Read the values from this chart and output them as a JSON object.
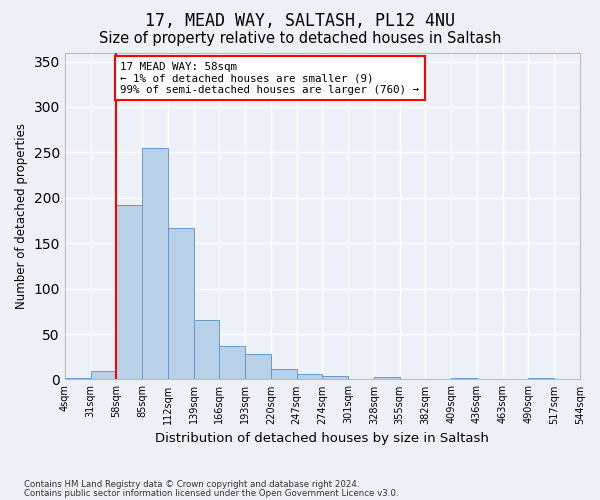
{
  "title1": "17, MEAD WAY, SALTASH, PL12 4NU",
  "title2": "Size of property relative to detached houses in Saltash",
  "xlabel": "Distribution of detached houses by size in Saltash",
  "ylabel": "Number of detached properties",
  "footnote1": "Contains HM Land Registry data © Crown copyright and database right 2024.",
  "footnote2": "Contains public sector information licensed under the Open Government Licence v3.0.",
  "bin_left_edges": [
    4,
    31,
    58,
    85,
    112,
    139,
    166,
    193,
    220,
    247,
    274,
    301,
    328,
    355,
    382,
    409,
    436,
    463,
    490,
    517
  ],
  "bin_labels": [
    "4sqm",
    "31sqm",
    "58sqm",
    "85sqm",
    "112sqm",
    "139sqm",
    "166sqm",
    "193sqm",
    "220sqm",
    "247sqm",
    "274sqm",
    "301sqm",
    "328sqm",
    "355sqm",
    "382sqm",
    "409sqm",
    "436sqm",
    "463sqm",
    "490sqm",
    "517sqm",
    "544sqm"
  ],
  "bar_heights": [
    2,
    9,
    192,
    255,
    167,
    65,
    37,
    28,
    11,
    6,
    4,
    0,
    3,
    0,
    0,
    2,
    0,
    0,
    2,
    0
  ],
  "bar_color": "#b8d0e8",
  "bar_edge_color": "#6699cc",
  "highlight_line_color": "red",
  "annotation_text": "17 MEAD WAY: 58sqm\n← 1% of detached houses are smaller (9)\n99% of semi-detached houses are larger (760) →",
  "annotation_box_color": "white",
  "annotation_box_edge": "red",
  "ylim": [
    0,
    360
  ],
  "yticks": [
    0,
    50,
    100,
    150,
    200,
    250,
    300,
    350
  ],
  "bg_color": "#edf1f7",
  "plot_bg_color": "#edf1f7",
  "grid_color": "white",
  "title1_fontsize": 12,
  "title2_fontsize": 10.5,
  "xlabel_fontsize": 9.5,
  "ylabel_fontsize": 8.5
}
